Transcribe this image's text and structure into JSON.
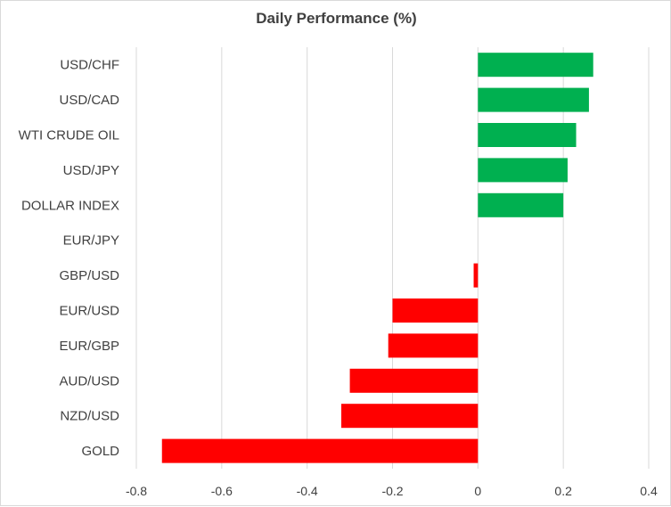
{
  "chart_data": {
    "type": "bar",
    "orientation": "horizontal",
    "title": "Daily Performance (%)",
    "xlabel": "",
    "ylabel": "",
    "categories": [
      "USD/CHF",
      "USD/CAD",
      "WTI CRUDE OIL",
      "USD/JPY",
      "DOLLAR INDEX",
      "EUR/JPY",
      "GBP/USD",
      "EUR/USD",
      "EUR/GBP",
      "AUD/USD",
      "NZD/USD",
      "GOLD"
    ],
    "values": [
      0.27,
      0.26,
      0.23,
      0.21,
      0.2,
      0.0,
      -0.01,
      -0.2,
      -0.21,
      -0.3,
      -0.32,
      -0.74
    ],
    "xlim": [
      -0.8,
      0.4
    ],
    "xticks": [
      -0.8,
      -0.6,
      -0.4,
      -0.2,
      0,
      0.2,
      0.4
    ],
    "xtick_labels": [
      "-0.8",
      "-0.6",
      "-0.4",
      "-0.2",
      "0",
      "0.2",
      "0.4"
    ],
    "grid": "vertical",
    "legend": "none",
    "colors": {
      "positive": "#00b050",
      "negative": "#ff0000",
      "grid": "#d9d9d9",
      "text": "#404040"
    }
  }
}
